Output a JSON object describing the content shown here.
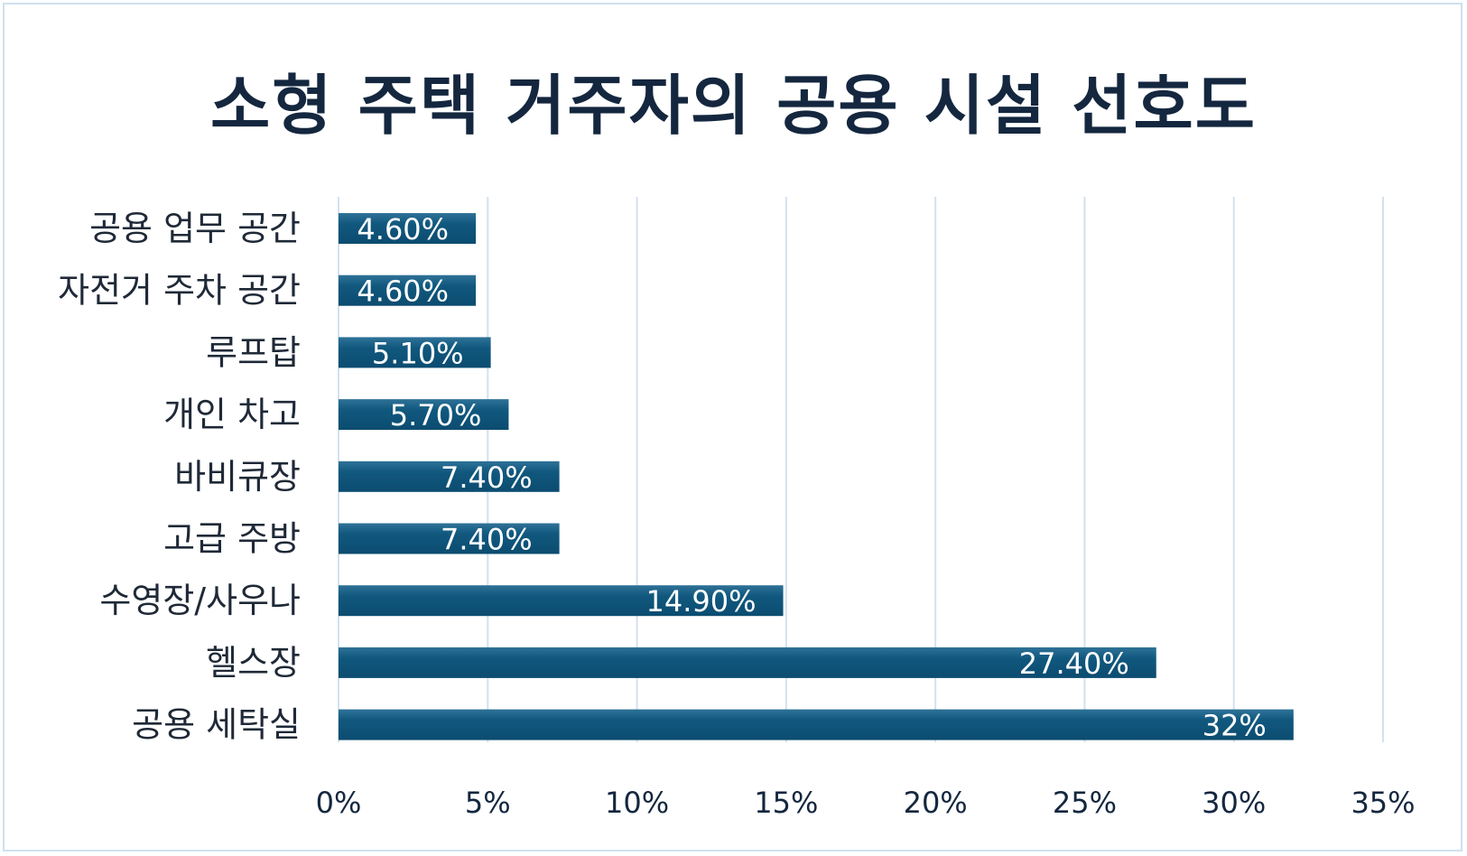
{
  "chart_data": {
    "type": "bar",
    "orientation": "horizontal",
    "title": "소형 주택 거주자의 공용 시설 선호도",
    "categories": [
      "공용 업무 공간",
      "자전거 주차 공간",
      "루프탑",
      "개인 차고",
      "바비큐장",
      "고급 주방",
      "수영장/사우나",
      "헬스장",
      "공용 세탁실"
    ],
    "values": [
      4.6,
      4.6,
      5.1,
      5.7,
      7.4,
      7.4,
      14.9,
      27.4,
      32
    ],
    "data_labels": [
      "4.60%",
      "4.60%",
      "5.10%",
      "5.70%",
      "7.40%",
      "7.40%",
      "14.90%",
      "27.40%",
      "32%"
    ],
    "x_ticks": [
      0,
      5,
      10,
      15,
      20,
      25,
      30,
      35
    ],
    "x_tick_labels": [
      "0%",
      "5%",
      "10%",
      "15%",
      "20%",
      "25%",
      "30%",
      "35%"
    ],
    "xlim": [
      0,
      35
    ],
    "grid": "vertical",
    "bar_color": "#11587e",
    "grid_color": "#d2e2ef",
    "xlabel": "",
    "ylabel": ""
  }
}
